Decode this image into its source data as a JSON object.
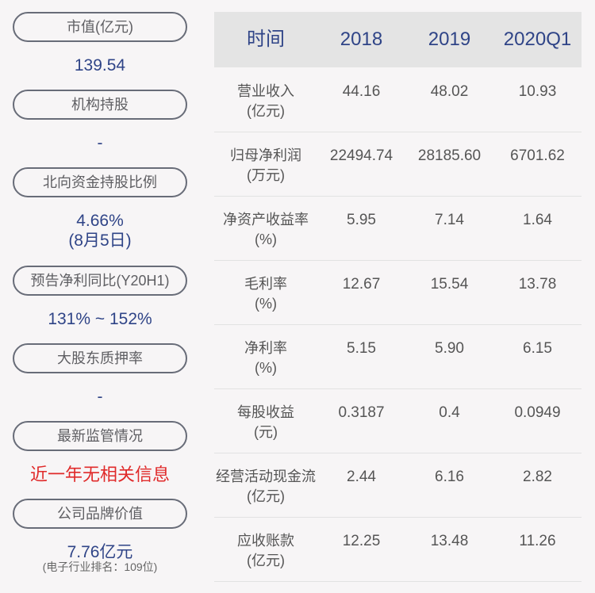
{
  "left_panel": [
    {
      "label": "市值(亿元)",
      "value": "139.54"
    },
    {
      "label": "机构持股",
      "value": "-"
    },
    {
      "label": "北向资金持股比例",
      "value": "4.66%",
      "value2": "(8月5日)"
    },
    {
      "label": "预告净利同比(Y20H1)",
      "value": "131% ~ 152%"
    },
    {
      "label": "大股东质押率",
      "value": "-"
    },
    {
      "label": "最新监管情况",
      "value": "近一年无相关信息"
    },
    {
      "label": "公司品牌价值",
      "value": "7.76亿元",
      "note": "(电子行业排名：109位)"
    }
  ],
  "table": {
    "headers": [
      "时间",
      "2018",
      "2019",
      "2020Q1"
    ],
    "rows": [
      {
        "label": "营业收入",
        "unit": "(亿元)",
        "values": [
          "44.16",
          "48.02",
          "10.93"
        ]
      },
      {
        "label": "归母净利润",
        "unit": "(万元)",
        "values": [
          "22494.74",
          "28185.60",
          "6701.62"
        ]
      },
      {
        "label": "净资产收益率",
        "unit": "(%)",
        "values": [
          "5.95",
          "7.14",
          "1.64"
        ]
      },
      {
        "label": "毛利率",
        "unit": "(%)",
        "values": [
          "12.67",
          "15.54",
          "13.78"
        ]
      },
      {
        "label": "净利率",
        "unit": "(%)",
        "values": [
          "5.15",
          "5.90",
          "6.15"
        ]
      },
      {
        "label": "每股收益",
        "unit": "(元)",
        "values": [
          "0.3187",
          "0.4",
          "0.0949"
        ]
      },
      {
        "label": "经营活动现金流",
        "unit": "(亿元)",
        "values": [
          "2.44",
          "6.16",
          "2.82"
        ]
      },
      {
        "label": "应收账款",
        "unit": "(亿元)",
        "values": [
          "12.25",
          "13.48",
          "11.26"
        ]
      }
    ]
  },
  "colors": {
    "accent": "#2f4487",
    "alert": "#e02a2a",
    "header_bg": "#e4e4e4",
    "background": "#f7f5f6"
  }
}
